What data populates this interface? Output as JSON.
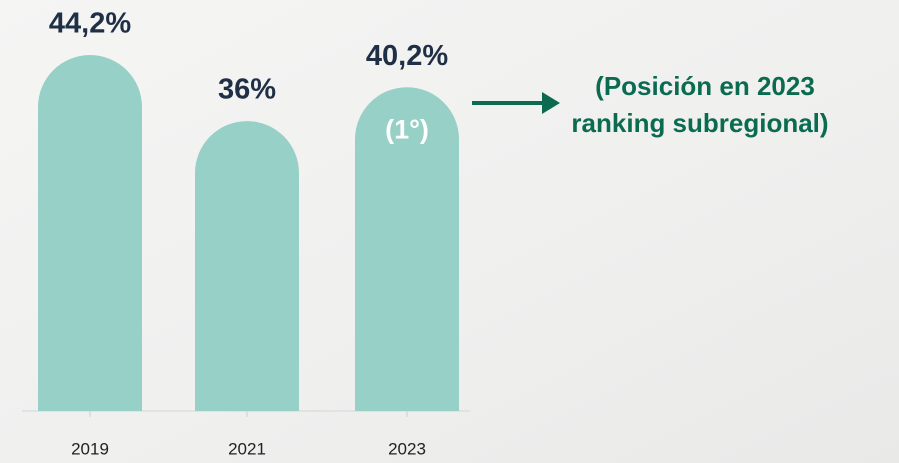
{
  "chart_data": {
    "type": "bar",
    "categories": [
      "2019",
      "2021",
      "2023"
    ],
    "values": [
      44.2,
      36,
      40.2
    ],
    "value_labels": [
      "44,2%",
      "36%",
      "40,2%"
    ],
    "color": "#96d0c6",
    "bar_note": "(1°)",
    "annotation": [
      "(Posición en 2023",
      "ranking subregional)"
    ]
  }
}
